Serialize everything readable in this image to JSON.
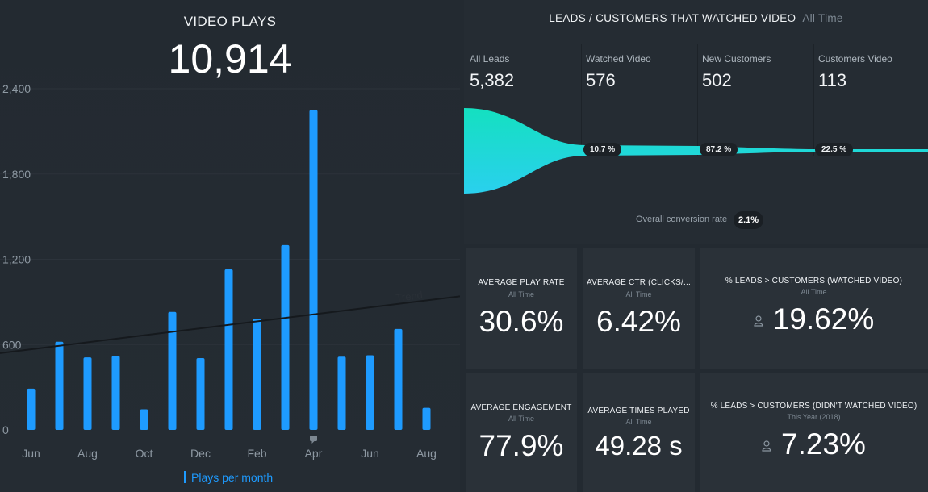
{
  "video_plays": {
    "title": "VIDEO PLAYS",
    "total": "10,914",
    "legend": "Plays per month",
    "trend_label": "Trend"
  },
  "chart_data": {
    "type": "bar",
    "title": "VIDEO PLAYS",
    "categories": [
      "Jun",
      "Jul",
      "Aug",
      "Sep",
      "Oct",
      "Nov",
      "Dec",
      "Jan",
      "Feb",
      "Mar",
      "Apr",
      "May",
      "Jun",
      "Jul",
      "Aug"
    ],
    "x_tick_labels": [
      "Jun",
      "",
      "Aug",
      "",
      "Oct",
      "",
      "Dec",
      "",
      "Feb",
      "",
      "Apr",
      "",
      "Jun",
      "",
      "Aug"
    ],
    "series": [
      {
        "name": "Plays per month",
        "values": [
          290,
          620,
          510,
          520,
          145,
          830,
          505,
          1130,
          780,
          1300,
          2250,
          515,
          525,
          710,
          155
        ]
      }
    ],
    "trend": {
      "start": 540,
      "end": 940
    },
    "y_ticks": [
      0,
      600,
      1200,
      1800,
      2400
    ],
    "y_tick_labels": [
      "0",
      "600",
      "1,200",
      "1,800",
      "2,400"
    ],
    "ylim": [
      0,
      2400
    ],
    "grid": true,
    "color": "#1e9bff"
  },
  "funnel": {
    "title": "LEADS / CUSTOMERS THAT WATCHED VIDEO",
    "subtitle": "All Time",
    "stages": [
      {
        "label": "All Leads",
        "value": "5,382"
      },
      {
        "label": "Watched Video",
        "value": "576"
      },
      {
        "label": "New Customers",
        "value": "502"
      },
      {
        "label": "Customers Video",
        "value": "113"
      }
    ],
    "conversions": [
      "10.7 %",
      "87.2 %",
      "22.5 %"
    ],
    "overall_label": "Overall conversion rate",
    "overall_value": "2.1%"
  },
  "kpis": [
    {
      "title": "AVERAGE PLAY RATE",
      "sub": "All Time",
      "value": "30.6%"
    },
    {
      "title": "AVERAGE CTR (CLICKS/...",
      "sub": "All Time",
      "value": "6.42%"
    },
    {
      "title": "% LEADS > CUSTOMERS (WATCHED VIDEO)",
      "sub": "All Time",
      "value": "19.62%",
      "icon": "person-icon"
    },
    {
      "title": "AVERAGE ENGAGEMENT",
      "sub": "All Time",
      "value": "77.9%"
    },
    {
      "title": "AVERAGE TIMES PLAYED",
      "sub": "All Time",
      "value": "49.28 s"
    },
    {
      "title": "% LEADS > CUSTOMERS (DIDN'T WATCHED VIDEO)",
      "sub": "This Year (2018)",
      "value": "7.23%",
      "icon": "person-icon"
    }
  ],
  "colors": {
    "accent": "#1e9bff",
    "funnel_start": "#14e0c0",
    "funnel_end": "#2ad0ee"
  }
}
